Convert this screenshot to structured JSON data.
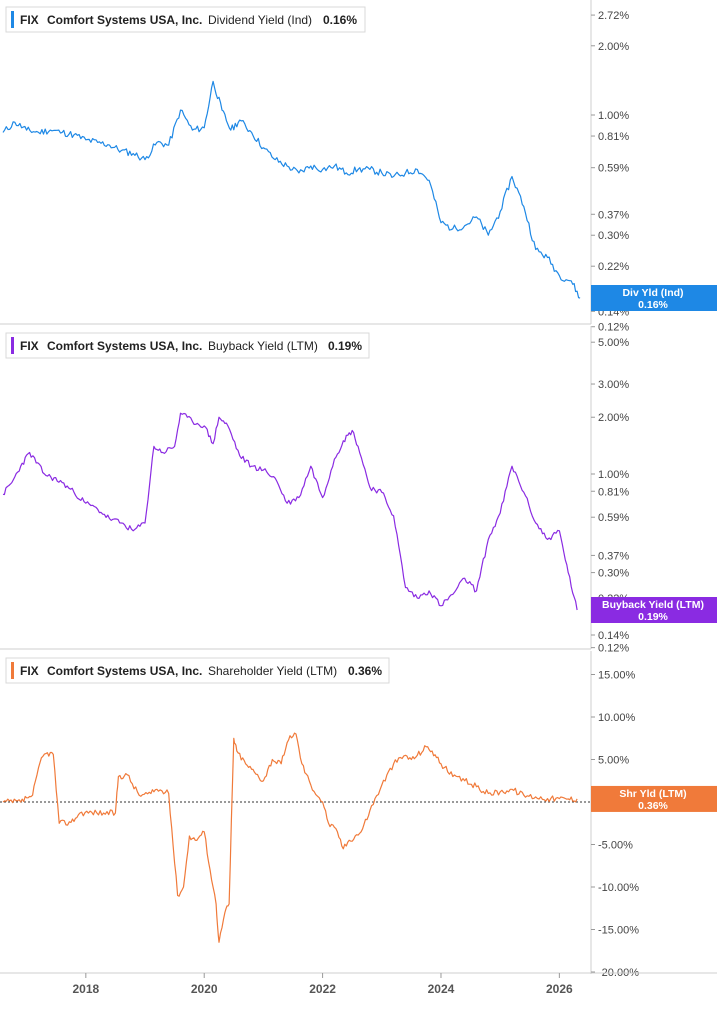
{
  "colors": {
    "dividend": "#1e88e5",
    "buyback": "#8a2be2",
    "shareholder": "#f07a3a",
    "axis": "#cfcfcf",
    "tick_text": "#444444",
    "badge_text": "#ffffff"
  },
  "chart_data": [
    {
      "type": "line",
      "ticker": "FIX",
      "company": "Comfort Systems USA, Inc.",
      "metric": "Dividend Yield (Ind)",
      "current_value": "0.16%",
      "scale": "log",
      "ylim": [
        0.12,
        3.0
      ],
      "ytick_values": [
        2.72,
        2.0,
        1.0,
        0.81,
        0.59,
        0.37,
        0.3,
        0.22,
        0.14,
        0.12
      ],
      "ytick_labels": [
        "2.72%",
        "2.00%",
        "1.00%",
        "0.81%",
        "0.59%",
        "0.37%",
        "0.30%",
        "0.22%",
        "0.14%",
        "0.12%"
      ],
      "badge_title": "Div Yld (Ind)",
      "badge_value": "0.16%",
      "badge_y": 0.16,
      "x": [
        2016.6,
        2016.8,
        2017.0,
        2017.2,
        2017.4,
        2017.6,
        2017.8,
        2018.0,
        2018.2,
        2018.4,
        2018.6,
        2018.8,
        2019.0,
        2019.2,
        2019.4,
        2019.6,
        2019.8,
        2020.0,
        2020.15,
        2020.3,
        2020.45,
        2020.6,
        2020.8,
        2021.0,
        2021.2,
        2021.4,
        2021.6,
        2021.8,
        2022.0,
        2022.2,
        2022.4,
        2022.6,
        2022.8,
        2023.0,
        2023.2,
        2023.4,
        2023.6,
        2023.8,
        2024.0,
        2024.2,
        2024.4,
        2024.6,
        2024.8,
        2025.0,
        2025.2,
        2025.4,
        2025.6,
        2025.8,
        2026.0,
        2026.2,
        2026.35
      ],
      "y": [
        0.84,
        0.93,
        0.86,
        0.84,
        0.86,
        0.84,
        0.82,
        0.78,
        0.76,
        0.74,
        0.7,
        0.68,
        0.64,
        0.76,
        0.74,
        1.05,
        0.86,
        0.88,
        1.4,
        1.05,
        0.86,
        0.95,
        0.84,
        0.72,
        0.64,
        0.6,
        0.56,
        0.6,
        0.58,
        0.6,
        0.56,
        0.58,
        0.58,
        0.56,
        0.54,
        0.56,
        0.58,
        0.52,
        0.34,
        0.32,
        0.33,
        0.36,
        0.3,
        0.38,
        0.54,
        0.4,
        0.26,
        0.24,
        0.2,
        0.19,
        0.16
      ]
    },
    {
      "type": "line",
      "ticker": "FIX",
      "company": "Comfort Systems USA, Inc.",
      "metric": "Buyback Yield (LTM)",
      "current_value": "0.19%",
      "scale": "log",
      "ylim": [
        0.12,
        5.0
      ],
      "ytick_values": [
        5.0,
        3.0,
        2.0,
        1.0,
        0.81,
        0.59,
        0.37,
        0.3,
        0.22,
        0.14,
        0.12
      ],
      "ytick_labels": [
        "5.00%",
        "3.00%",
        "2.00%",
        "1.00%",
        "0.81%",
        "0.59%",
        "0.37%",
        "0.30%",
        "0.22%",
        "0.14%",
        "0.12%"
      ],
      "badge_title": "Buyback Yield (LTM)",
      "badge_value": "0.19%",
      "badge_y": 0.19,
      "x": [
        2016.6,
        2016.75,
        2016.9,
        2017.05,
        2017.3,
        2017.6,
        2017.8,
        2018.0,
        2018.2,
        2018.4,
        2018.6,
        2018.8,
        2019.0,
        2019.15,
        2019.3,
        2019.5,
        2019.6,
        2019.8,
        2020.0,
        2020.15,
        2020.25,
        2020.4,
        2020.6,
        2020.8,
        2021.0,
        2021.2,
        2021.4,
        2021.6,
        2021.8,
        2022.0,
        2022.2,
        2022.35,
        2022.5,
        2022.6,
        2022.8,
        2023.0,
        2023.2,
        2023.4,
        2023.6,
        2023.8,
        2024.0,
        2024.2,
        2024.4,
        2024.6,
        2024.8,
        2025.0,
        2025.2,
        2025.4,
        2025.6,
        2025.8,
        2026.0,
        2026.15,
        2026.3
      ],
      "y": [
        0.78,
        0.9,
        1.1,
        1.3,
        1.0,
        0.9,
        0.8,
        0.7,
        0.65,
        0.58,
        0.55,
        0.5,
        0.55,
        1.4,
        1.3,
        1.4,
        2.1,
        1.9,
        1.8,
        1.45,
        2.0,
        1.8,
        1.25,
        1.1,
        1.05,
        0.95,
        0.7,
        0.75,
        1.1,
        0.75,
        1.2,
        1.5,
        1.7,
        1.4,
        0.85,
        0.8,
        0.6,
        0.25,
        0.22,
        0.24,
        0.2,
        0.23,
        0.28,
        0.24,
        0.45,
        0.62,
        1.1,
        0.8,
        0.55,
        0.45,
        0.5,
        0.3,
        0.19
      ]
    },
    {
      "type": "line",
      "ticker": "FIX",
      "company": "Comfort Systems USA, Inc.",
      "metric": "Shareholder Yield (LTM)",
      "current_value": "0.36%",
      "scale": "linear",
      "ylim": [
        -20.0,
        15.0
      ],
      "ytick_values": [
        15,
        10,
        5,
        0,
        -5,
        -10,
        -15,
        -20
      ],
      "ytick_labels": [
        "15.00%",
        "10.00%",
        "5.00%",
        "0.00%",
        "-5.00%",
        "-10.00%",
        "-15.00%",
        "-20.00%"
      ],
      "reference_line": 0,
      "badge_title": "Shr Yld (LTM)",
      "badge_value": "0.36%",
      "badge_y": 0.36,
      "x": [
        2016.6,
        2016.9,
        2017.0,
        2017.1,
        2017.25,
        2017.35,
        2017.45,
        2017.55,
        2017.75,
        2017.9,
        2018.1,
        2018.3,
        2018.5,
        2018.55,
        2018.7,
        2018.9,
        2019.1,
        2019.2,
        2019.4,
        2019.55,
        2019.65,
        2019.75,
        2019.85,
        2020.0,
        2020.1,
        2020.2,
        2020.25,
        2020.35,
        2020.42,
        2020.5,
        2020.55,
        2020.7,
        2020.85,
        2021.0,
        2021.15,
        2021.3,
        2021.45,
        2021.55,
        2021.65,
        2021.8,
        2022.0,
        2022.1,
        2022.25,
        2022.35,
        2022.45,
        2022.55,
        2022.65,
        2022.8,
        2023.0,
        2023.2,
        2023.4,
        2023.5,
        2023.6,
        2023.75,
        2023.85,
        2024.0,
        2024.2,
        2024.4,
        2024.6,
        2024.8,
        2025.0,
        2025.2,
        2025.4,
        2025.6,
        2025.8,
        2026.0,
        2026.15,
        2026.3
      ],
      "y": [
        0.0,
        0.0,
        0.5,
        0.8,
        5.2,
        5.8,
        5.6,
        -2.5,
        -2.4,
        -1.3,
        -1.2,
        -1.3,
        -1.3,
        3.0,
        3.2,
        0.8,
        1.0,
        1.5,
        1.0,
        -11.0,
        -10.0,
        -4.0,
        -4.5,
        -3.5,
        -8.0,
        -12.0,
        -16.5,
        -13.0,
        -12.0,
        7.5,
        6.0,
        4.5,
        3.5,
        2.5,
        5.0,
        4.5,
        7.8,
        8.0,
        4.5,
        2.0,
        0.0,
        -2.5,
        -3.5,
        -5.5,
        -4.5,
        -4.0,
        -3.5,
        -1.0,
        2.0,
        4.5,
        5.5,
        5.0,
        5.5,
        6.5,
        6.0,
        4.5,
        3.0,
        2.5,
        1.8,
        1.0,
        1.2,
        1.5,
        0.8,
        0.6,
        0.4,
        0.4,
        0.36,
        0.36
      ]
    }
  ],
  "x_axis": {
    "ticks": [
      2018,
      2020,
      2022,
      2024,
      2026
    ],
    "labels": [
      "2018",
      "2020",
      "2022",
      "2024",
      "2026"
    ],
    "range": [
      2016.55,
      2026.45
    ]
  }
}
